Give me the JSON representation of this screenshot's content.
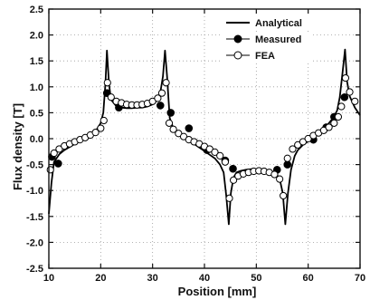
{
  "chart_data": {
    "type": "line",
    "xlabel": "Position [mm]",
    "ylabel": "Flux density [T]",
    "xlim": [
      10,
      70
    ],
    "ylim": [
      -2.5,
      2.5
    ],
    "xticks": [
      10,
      20,
      30,
      40,
      50,
      60,
      70
    ],
    "yticks": [
      -2.5,
      -2.0,
      -1.5,
      -1.0,
      -0.5,
      0.0,
      0.5,
      1.0,
      1.5,
      2.0,
      2.5
    ],
    "grid": true,
    "legend_position": "top-right",
    "series": [
      {
        "name": "Analytical",
        "style": "line",
        "x": [
          10,
          10.5,
          11,
          12,
          13,
          14,
          15,
          16,
          17,
          18,
          19,
          20,
          20.5,
          20.9,
          21.2,
          21.6,
          22,
          23,
          24,
          25,
          26,
          27,
          28,
          29,
          30,
          31,
          31.5,
          32,
          32.4,
          32.8,
          33.3,
          34,
          35,
          36,
          37,
          38,
          39,
          40,
          41,
          42,
          43,
          43.7,
          44.2,
          44.7,
          45.1,
          45.6,
          46.2,
          47,
          48,
          49,
          50,
          51,
          52,
          53,
          54,
          54.6,
          55.1,
          55.6,
          56.1,
          56.7,
          57.4,
          58,
          59,
          60,
          61,
          62,
          63,
          64,
          65,
          65.6,
          66.1,
          66.6,
          67.1,
          67.5,
          68,
          69,
          70
        ],
        "y": [
          -1.45,
          -0.85,
          -0.45,
          -0.3,
          -0.22,
          -0.16,
          -0.1,
          -0.05,
          0.0,
          0.06,
          0.14,
          0.3,
          0.5,
          1.05,
          1.7,
          1.05,
          0.75,
          0.63,
          0.6,
          0.59,
          0.59,
          0.6,
          0.6,
          0.62,
          0.66,
          0.75,
          0.9,
          1.2,
          1.7,
          1.2,
          0.4,
          0.2,
          0.09,
          0.01,
          -0.04,
          -0.1,
          -0.17,
          -0.24,
          -0.31,
          -0.38,
          -0.5,
          -0.65,
          -1.1,
          -1.65,
          -1.05,
          -0.75,
          -0.65,
          -0.62,
          -0.6,
          -0.59,
          -0.59,
          -0.6,
          -0.61,
          -0.64,
          -0.7,
          -0.82,
          -1.05,
          -1.65,
          -1.05,
          -0.6,
          -0.33,
          -0.22,
          -0.12,
          -0.05,
          0.02,
          0.1,
          0.17,
          0.3,
          0.42,
          0.55,
          0.8,
          1.25,
          1.72,
          1.1,
          0.82,
          0.6,
          0.45
        ]
      },
      {
        "name": "Measured",
        "style": "filled-circle",
        "x": [
          10.6,
          11.8,
          21.2,
          23.5,
          31.5,
          33.5,
          37.0,
          40.5,
          44.0,
          45.5,
          54.0,
          56.0,
          61.0,
          63.5,
          65.0,
          67.0
        ],
        "y": [
          -0.35,
          -0.48,
          0.88,
          0.6,
          0.64,
          0.5,
          0.2,
          -0.22,
          -0.42,
          -0.58,
          -0.6,
          -0.5,
          -0.02,
          0.22,
          0.42,
          0.8
        ]
      },
      {
        "name": "FEA",
        "style": "open-circle",
        "x": [
          10.3,
          11.0,
          12.0,
          13.0,
          14.0,
          15.0,
          16.0,
          17.0,
          18.0,
          19.0,
          20.0,
          20.6,
          21.3,
          22.0,
          23.0,
          24.0,
          25.0,
          26.0,
          27.0,
          28.0,
          29.0,
          30.0,
          31.0,
          31.8,
          32.6,
          33.2,
          34.0,
          35.0,
          36.0,
          37.0,
          38.0,
          39.0,
          40.0,
          41.0,
          42.0,
          43.0,
          44.0,
          44.8,
          45.6,
          46.5,
          47.5,
          48.5,
          49.5,
          50.5,
          51.5,
          52.5,
          53.5,
          54.5,
          55.2,
          56.0,
          57.0,
          58.0,
          59.0,
          60.0,
          61.0,
          62.0,
          63.0,
          64.0,
          65.0,
          65.8,
          66.4,
          67.2,
          68.0,
          69.0
        ],
        "y": [
          -0.6,
          -0.28,
          -0.2,
          -0.14,
          -0.1,
          -0.06,
          -0.02,
          0.02,
          0.07,
          0.12,
          0.2,
          0.35,
          1.08,
          0.8,
          0.72,
          0.69,
          0.66,
          0.65,
          0.65,
          0.66,
          0.68,
          0.72,
          0.78,
          0.88,
          1.08,
          0.3,
          0.18,
          0.1,
          0.04,
          -0.02,
          -0.06,
          -0.1,
          -0.15,
          -0.2,
          -0.26,
          -0.33,
          -0.45,
          -1.15,
          -0.8,
          -0.72,
          -0.68,
          -0.65,
          -0.63,
          -0.62,
          -0.63,
          -0.65,
          -0.69,
          -0.78,
          -1.1,
          -0.38,
          -0.2,
          -0.12,
          -0.06,
          0.0,
          0.06,
          0.11,
          0.16,
          0.22,
          0.3,
          0.42,
          0.62,
          1.17,
          0.9,
          0.72
        ]
      }
    ]
  }
}
